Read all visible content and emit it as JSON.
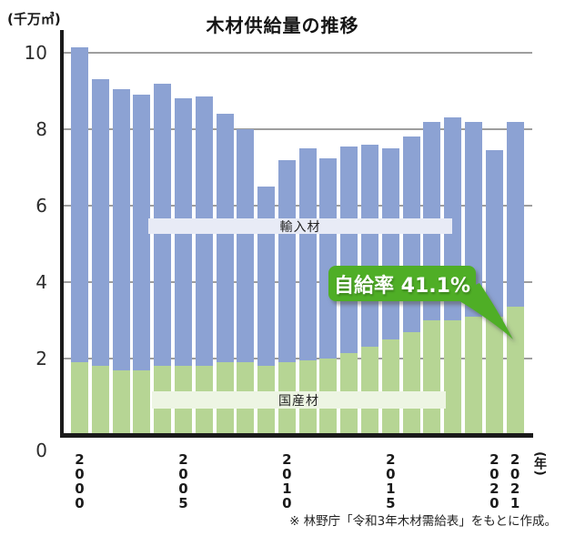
{
  "title": "木材供給量の推移",
  "y_axis": {
    "unit_label": "(千万㎥)",
    "ticks": [
      "10",
      "8",
      "6",
      "4",
      "2",
      "0"
    ]
  },
  "x_axis": {
    "unit_label": "(年)",
    "tick_years": [
      "2000",
      "2005",
      "2010",
      "2015",
      "2020",
      "2021"
    ]
  },
  "bands": {
    "imported_label": "輸入材",
    "domestic_label": "国産材"
  },
  "callout": {
    "text": "自給率 41.1%"
  },
  "footnote": "※ 林野庁「令和3年木材需給表」をもとに作成。",
  "colors": {
    "bar_imported": "#8CA2D3",
    "bar_domestic": "#B6D594",
    "band_imported_bg": "#E8EBF6",
    "band_domestic_bg": "#EDF5E3",
    "callout_green": "#4FAE28",
    "gridline": "#9E9E9E",
    "axis": "#1A1A1A"
  },
  "chart_data": {
    "type": "bar",
    "stacked": true,
    "title": "木材供給量の推移",
    "xlabel": "年",
    "ylabel": "千万㎥",
    "ylim": [
      0,
      10.5
    ],
    "grid": true,
    "gridline_values": [
      2,
      4,
      6,
      8,
      10
    ],
    "legend_position": "inside-bands",
    "categories": [
      2000,
      2001,
      2002,
      2003,
      2004,
      2005,
      2006,
      2007,
      2008,
      2009,
      2010,
      2011,
      2012,
      2013,
      2014,
      2015,
      2016,
      2017,
      2018,
      2019,
      2020,
      2021
    ],
    "series": [
      {
        "name": "国産材",
        "color": "#B6D594",
        "values": [
          1.9,
          1.8,
          1.7,
          1.7,
          1.8,
          1.8,
          1.8,
          1.9,
          1.9,
          1.8,
          1.9,
          1.95,
          2.0,
          2.15,
          2.3,
          2.5,
          2.7,
          3.0,
          3.0,
          3.1,
          3.1,
          3.35
        ]
      },
      {
        "name": "輸入材",
        "color": "#8CA2D3",
        "values": [
          8.25,
          7.5,
          7.35,
          7.2,
          7.4,
          7.0,
          7.05,
          6.5,
          6.1,
          4.7,
          5.3,
          5.55,
          5.25,
          5.4,
          5.3,
          5.0,
          5.1,
          5.2,
          5.3,
          5.1,
          4.35,
          4.85
        ]
      }
    ],
    "totals": [
      10.15,
      9.3,
      9.05,
      8.9,
      9.2,
      8.8,
      8.85,
      8.4,
      8.0,
      6.5,
      7.2,
      7.5,
      7.25,
      7.55,
      7.6,
      7.5,
      7.8,
      8.2,
      8.3,
      8.2,
      7.45,
      8.2
    ],
    "annotations": [
      {
        "text": "自給率 41.1%",
        "target_year": 2021
      }
    ]
  }
}
